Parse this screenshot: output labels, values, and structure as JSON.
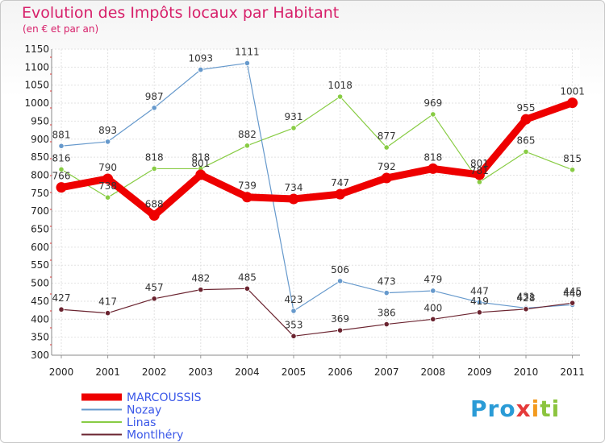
{
  "chart_data": {
    "type": "line",
    "title": "Evolution des Impôts locaux par Habitant",
    "subtitle": "(en € et par an)",
    "x": [
      "2000",
      "2001",
      "2002",
      "2003",
      "2004",
      "2005",
      "2006",
      "2007",
      "2008",
      "2009",
      "2010",
      "2011"
    ],
    "ylim": [
      300,
      1150
    ],
    "yticks": [
      300,
      350,
      400,
      450,
      500,
      550,
      600,
      650,
      700,
      750,
      800,
      850,
      900,
      950,
      1000,
      1050,
      1100,
      1150
    ],
    "series": [
      {
        "name": "MARCOUSSIS",
        "color": "#ee0000",
        "values": [
          766,
          790,
          688,
          801,
          739,
          734,
          747,
          792,
          818,
          801,
          955,
          1001
        ],
        "labels": [
          "766",
          "790",
          "688",
          "801",
          "739",
          "734",
          "747",
          "792",
          "818",
          "801",
          "955",
          "1001"
        ]
      },
      {
        "name": "Nozay",
        "color": "#6699cc",
        "values": [
          881,
          893,
          987,
          1093,
          1111,
          423,
          506,
          473,
          479,
          447,
          431,
          440
        ],
        "labels": [
          "881",
          "893",
          "987",
          "1093",
          "1111",
          "423",
          "506",
          "473",
          "479",
          "447",
          "431",
          "440"
        ]
      },
      {
        "name": "Linas",
        "color": "#88cc44",
        "values": [
          816,
          738,
          818,
          818,
          882,
          931,
          1018,
          877,
          969,
          781,
          865,
          815
        ],
        "labels": [
          "816",
          "738",
          "818",
          "818",
          "882",
          "931",
          "1018",
          "877",
          "969",
          "781",
          "865",
          "815"
        ]
      },
      {
        "name": "Montlhéry",
        "color": "#6b2430",
        "values": [
          427,
          417,
          457,
          482,
          485,
          353,
          369,
          386,
          400,
          419,
          428,
          445
        ],
        "labels": [
          "427",
          "417",
          "457",
          "482",
          "485",
          "353",
          "369",
          "386",
          "400",
          "419",
          "428",
          "445"
        ]
      }
    ]
  },
  "logo": {
    "p1": "Pro",
    "p2": "x",
    "p3": "i",
    "p4": "ti"
  }
}
